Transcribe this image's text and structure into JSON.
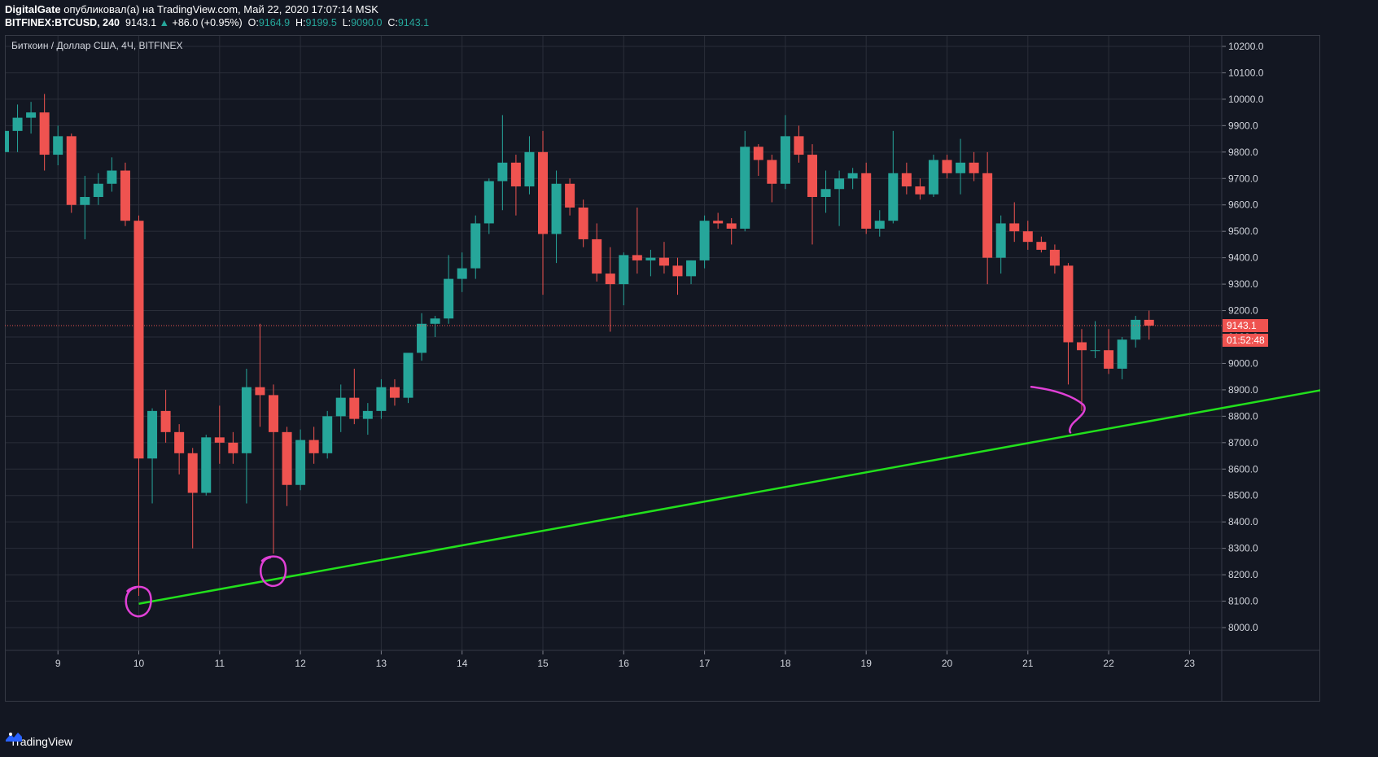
{
  "header": {
    "author": "DigitalGate",
    "published_text": "опубликовал(а) на TradingView.com, Май 22, 2020 17:07:14 MSK",
    "symbol": "BITFINEX:BTCUSD, 240",
    "last": "9143.1",
    "change": "+86.0 (+0.95%)",
    "o_label": "O:",
    "o_value": "9164.9",
    "h_label": "H:",
    "h_value": "9199.5",
    "l_label": "L:",
    "l_value": "9090.0",
    "c_label": "C:",
    "c_value": "9143.1"
  },
  "chart_data": {
    "type": "candlestick",
    "title": "Биткоин / Доллар США, 4Ч, BITFINEX",
    "x_ticks": [
      "9",
      "10",
      "11",
      "12",
      "13",
      "14",
      "15",
      "16",
      "17",
      "18",
      "19",
      "20",
      "21",
      "22",
      "23"
    ],
    "y_ticks": [
      "8000.0",
      "8100.0",
      "8200.0",
      "8300.0",
      "8400.0",
      "8500.0",
      "8600.0",
      "8700.0",
      "8800.0",
      "8900.0",
      "9000.0",
      "9100.0",
      "9200.0",
      "9300.0",
      "9400.0",
      "9500.0",
      "9600.0",
      "9700.0",
      "9800.0",
      "9900.0",
      "10000.0",
      "10100.0",
      "10200.0"
    ],
    "ylim": [
      7900,
      10250
    ],
    "price_label": "9143.1",
    "countdown_label": "01:52:48",
    "candles": [
      {
        "o": 9800,
        "h": 9900,
        "l": 9780,
        "c": 9880
      },
      {
        "o": 9880,
        "h": 9980,
        "l": 9800,
        "c": 9930
      },
      {
        "o": 9930,
        "h": 9990,
        "l": 9870,
        "c": 9950
      },
      {
        "o": 9950,
        "h": 10020,
        "l": 9730,
        "c": 9790
      },
      {
        "o": 9790,
        "h": 9900,
        "l": 9750,
        "c": 9860
      },
      {
        "o": 9860,
        "h": 9870,
        "l": 9570,
        "c": 9600
      },
      {
        "o": 9600,
        "h": 9710,
        "l": 9470,
        "c": 9630
      },
      {
        "o": 9630,
        "h": 9720,
        "l": 9600,
        "c": 9680
      },
      {
        "o": 9680,
        "h": 9780,
        "l": 9650,
        "c": 9730
      },
      {
        "o": 9730,
        "h": 9760,
        "l": 9520,
        "c": 9540
      },
      {
        "o": 9540,
        "h": 9560,
        "l": 8120,
        "c": 8640
      },
      {
        "o": 8640,
        "h": 8830,
        "l": 8470,
        "c": 8820
      },
      {
        "o": 8820,
        "h": 8900,
        "l": 8700,
        "c": 8740
      },
      {
        "o": 8740,
        "h": 8770,
        "l": 8580,
        "c": 8660
      },
      {
        "o": 8660,
        "h": 8680,
        "l": 8300,
        "c": 8510
      },
      {
        "o": 8510,
        "h": 8730,
        "l": 8500,
        "c": 8720
      },
      {
        "o": 8720,
        "h": 8840,
        "l": 8620,
        "c": 8700
      },
      {
        "o": 8700,
        "h": 8740,
        "l": 8620,
        "c": 8660
      },
      {
        "o": 8660,
        "h": 8980,
        "l": 8470,
        "c": 8910
      },
      {
        "o": 8910,
        "h": 9150,
        "l": 8760,
        "c": 8880
      },
      {
        "o": 8880,
        "h": 8920,
        "l": 8280,
        "c": 8740
      },
      {
        "o": 8740,
        "h": 8760,
        "l": 8460,
        "c": 8540
      },
      {
        "o": 8540,
        "h": 8750,
        "l": 8520,
        "c": 8710
      },
      {
        "o": 8710,
        "h": 8760,
        "l": 8620,
        "c": 8660
      },
      {
        "o": 8660,
        "h": 8820,
        "l": 8640,
        "c": 8800
      },
      {
        "o": 8800,
        "h": 8920,
        "l": 8740,
        "c": 8870
      },
      {
        "o": 8870,
        "h": 8980,
        "l": 8770,
        "c": 8790
      },
      {
        "o": 8790,
        "h": 8850,
        "l": 8730,
        "c": 8820
      },
      {
        "o": 8820,
        "h": 8940,
        "l": 8790,
        "c": 8910
      },
      {
        "o": 8910,
        "h": 8940,
        "l": 8840,
        "c": 8870
      },
      {
        "o": 8870,
        "h": 9040,
        "l": 8850,
        "c": 9040
      },
      {
        "o": 9040,
        "h": 9190,
        "l": 9010,
        "c": 9150
      },
      {
        "o": 9150,
        "h": 9180,
        "l": 9100,
        "c": 9170
      },
      {
        "o": 9170,
        "h": 9410,
        "l": 9150,
        "c": 9320
      },
      {
        "o": 9320,
        "h": 9420,
        "l": 9270,
        "c": 9360
      },
      {
        "o": 9360,
        "h": 9560,
        "l": 9320,
        "c": 9530
      },
      {
        "o": 9530,
        "h": 9700,
        "l": 9490,
        "c": 9690
      },
      {
        "o": 9690,
        "h": 9940,
        "l": 9580,
        "c": 9760
      },
      {
        "o": 9760,
        "h": 9790,
        "l": 9560,
        "c": 9670
      },
      {
        "o": 9670,
        "h": 9860,
        "l": 9640,
        "c": 9800
      },
      {
        "o": 9800,
        "h": 9880,
        "l": 9260,
        "c": 9490
      },
      {
        "o": 9490,
        "h": 9730,
        "l": 9380,
        "c": 9680
      },
      {
        "o": 9680,
        "h": 9700,
        "l": 9560,
        "c": 9590
      },
      {
        "o": 9590,
        "h": 9620,
        "l": 9440,
        "c": 9470
      },
      {
        "o": 9470,
        "h": 9530,
        "l": 9310,
        "c": 9340
      },
      {
        "o": 9340,
        "h": 9440,
        "l": 9120,
        "c": 9300
      },
      {
        "o": 9300,
        "h": 9420,
        "l": 9220,
        "c": 9410
      },
      {
        "o": 9410,
        "h": 9590,
        "l": 9340,
        "c": 9390
      },
      {
        "o": 9390,
        "h": 9430,
        "l": 9330,
        "c": 9400
      },
      {
        "o": 9400,
        "h": 9460,
        "l": 9340,
        "c": 9370
      },
      {
        "o": 9370,
        "h": 9400,
        "l": 9260,
        "c": 9330
      },
      {
        "o": 9330,
        "h": 9390,
        "l": 9300,
        "c": 9390
      },
      {
        "o": 9390,
        "h": 9560,
        "l": 9360,
        "c": 9540
      },
      {
        "o": 9540,
        "h": 9570,
        "l": 9510,
        "c": 9530
      },
      {
        "o": 9530,
        "h": 9550,
        "l": 9450,
        "c": 9510
      },
      {
        "o": 9510,
        "h": 9880,
        "l": 9500,
        "c": 9820
      },
      {
        "o": 9820,
        "h": 9830,
        "l": 9710,
        "c": 9770
      },
      {
        "o": 9770,
        "h": 9790,
        "l": 9610,
        "c": 9680
      },
      {
        "o": 9680,
        "h": 9940,
        "l": 9660,
        "c": 9860
      },
      {
        "o": 9860,
        "h": 9900,
        "l": 9760,
        "c": 9790
      },
      {
        "o": 9790,
        "h": 9830,
        "l": 9450,
        "c": 9630
      },
      {
        "o": 9630,
        "h": 9730,
        "l": 9570,
        "c": 9660
      },
      {
        "o": 9660,
        "h": 9730,
        "l": 9520,
        "c": 9700
      },
      {
        "o": 9700,
        "h": 9740,
        "l": 9660,
        "c": 9720
      },
      {
        "o": 9720,
        "h": 9760,
        "l": 9490,
        "c": 9510
      },
      {
        "o": 9510,
        "h": 9580,
        "l": 9480,
        "c": 9540
      },
      {
        "o": 9540,
        "h": 9880,
        "l": 9530,
        "c": 9720
      },
      {
        "o": 9720,
        "h": 9760,
        "l": 9640,
        "c": 9670
      },
      {
        "o": 9670,
        "h": 9700,
        "l": 9620,
        "c": 9640
      },
      {
        "o": 9640,
        "h": 9790,
        "l": 9630,
        "c": 9770
      },
      {
        "o": 9770,
        "h": 9790,
        "l": 9700,
        "c": 9720
      },
      {
        "o": 9720,
        "h": 9850,
        "l": 9640,
        "c": 9760
      },
      {
        "o": 9760,
        "h": 9800,
        "l": 9690,
        "c": 9720
      },
      {
        "o": 9720,
        "h": 9800,
        "l": 9300,
        "c": 9400
      },
      {
        "o": 9400,
        "h": 9560,
        "l": 9340,
        "c": 9530
      },
      {
        "o": 9530,
        "h": 9610,
        "l": 9460,
        "c": 9500
      },
      {
        "o": 9500,
        "h": 9540,
        "l": 9430,
        "c": 9460
      },
      {
        "o": 9460,
        "h": 9480,
        "l": 9420,
        "c": 9430
      },
      {
        "o": 9430,
        "h": 9450,
        "l": 9340,
        "c": 9370
      },
      {
        "o": 9370,
        "h": 9380,
        "l": 8920,
        "c": 9080
      },
      {
        "o": 9080,
        "h": 9130,
        "l": 8820,
        "c": 9050
      },
      {
        "o": 9050,
        "h": 9160,
        "l": 9020,
        "c": 9050
      },
      {
        "o": 9050,
        "h": 9130,
        "l": 8960,
        "c": 8980
      },
      {
        "o": 8980,
        "h": 9100,
        "l": 8940,
        "c": 9090
      },
      {
        "o": 9090,
        "h": 9180,
        "l": 9060,
        "c": 9165
      },
      {
        "o": 9165,
        "h": 9200,
        "l": 9090,
        "c": 9143
      }
    ],
    "trendline": [
      {
        "x": 10,
        "y": 8090
      },
      {
        "x": 99,
        "y": 8910
      }
    ],
    "annotations": [
      {
        "kind": "circle",
        "x": 10,
        "y": 8095
      },
      {
        "kind": "circle",
        "x": 20,
        "y": 8210
      },
      {
        "kind": "bracket",
        "x": 80,
        "y": 8825
      }
    ]
  },
  "colors": {
    "background": "#131722",
    "grid": "#2a2e39",
    "up": "#26a69a",
    "down": "#ef5350",
    "trendline": "#22e01c",
    "annotation": "#e040d6",
    "text": "#d1d4dc"
  },
  "footer": {
    "brand": "TradingView",
    "icon": "tradingview-logo-icon"
  }
}
